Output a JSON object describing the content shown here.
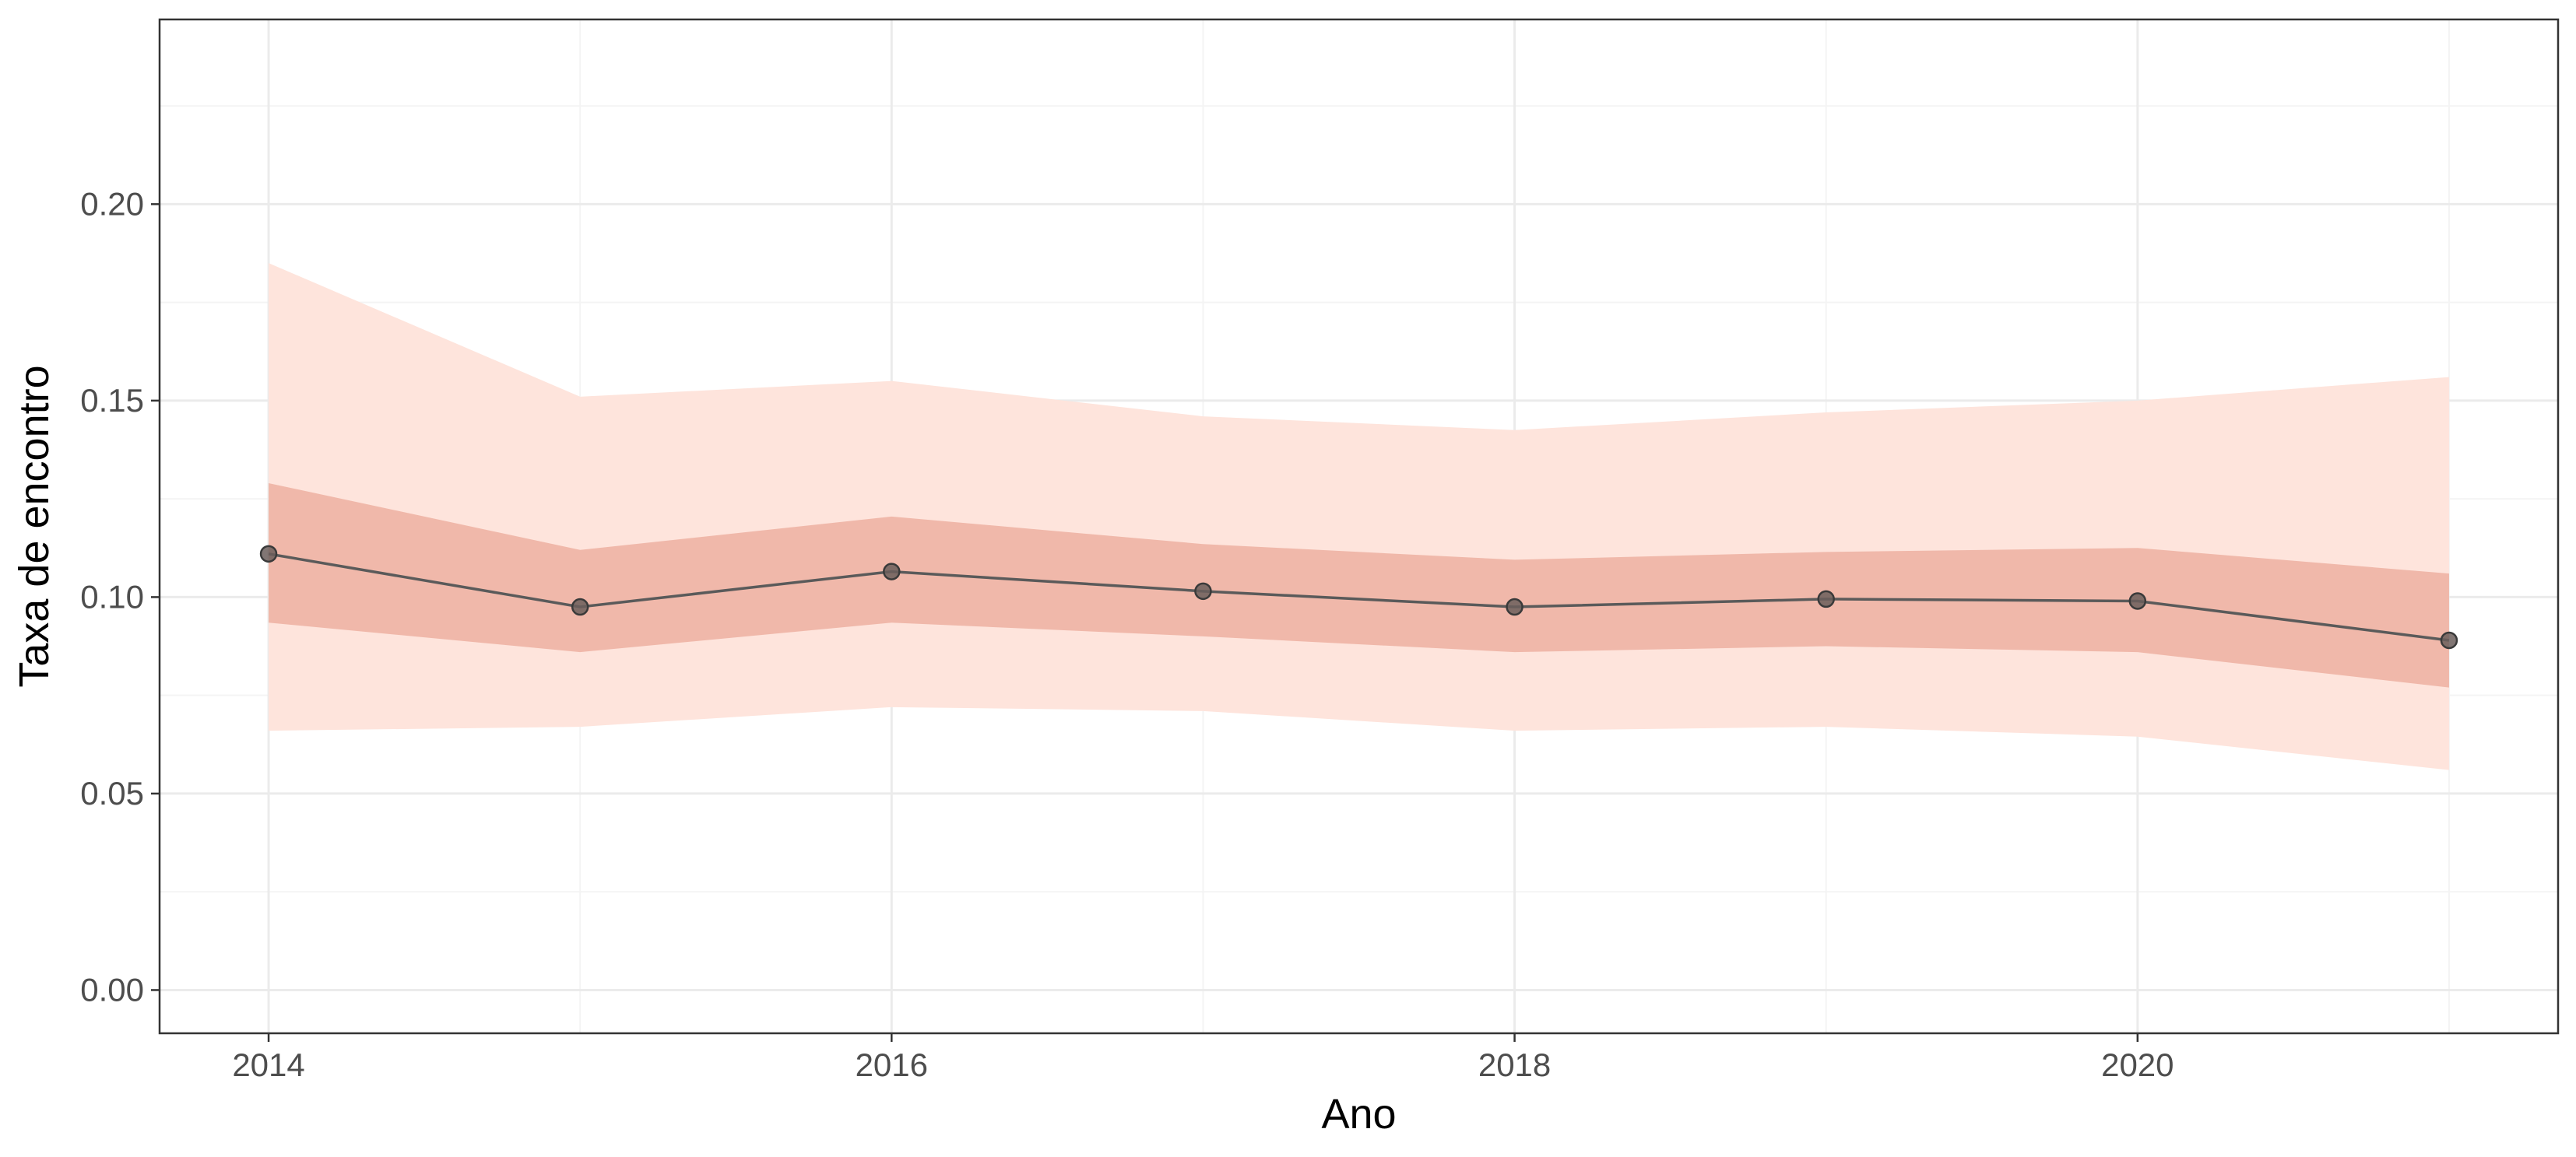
{
  "chart_data": {
    "type": "line",
    "xlabel": "Ano",
    "ylabel": "Taxa de encontro",
    "xlim": [
      2013.65,
      2021.35
    ],
    "ylim": [
      -0.011,
      0.247
    ],
    "x_ticks": [
      2014,
      2016,
      2018,
      2020
    ],
    "x_tick_labels": [
      "2014",
      "2016",
      "2018",
      "2020"
    ],
    "y_ticks": [
      0,
      0.05,
      0.1,
      0.15,
      0.2
    ],
    "y_tick_labels": [
      "0.00",
      "0.05",
      "0.10",
      "0.15",
      "0.20"
    ],
    "grid": true,
    "series": [
      {
        "x": [
          2014,
          2015,
          2016,
          2017,
          2018,
          2019,
          2020,
          2021
        ],
        "y": [
          0.111,
          0.0975,
          0.1065,
          0.1015,
          0.0975,
          0.0995,
          0.099,
          0.089
        ],
        "inner_lower": [
          0.0935,
          0.086,
          0.0935,
          0.09,
          0.086,
          0.0875,
          0.086,
          0.077
        ],
        "inner_upper": [
          0.129,
          0.112,
          0.1205,
          0.1135,
          0.1095,
          0.1115,
          0.1125,
          0.106
        ],
        "outer_lower": [
          0.066,
          0.067,
          0.072,
          0.071,
          0.066,
          0.067,
          0.0645,
          0.056
        ],
        "outer_upper": [
          0.185,
          0.151,
          0.155,
          0.146,
          0.1425,
          0.147,
          0.15,
          0.156
        ]
      }
    ],
    "colors": {
      "outer_band": "#fee4dc",
      "inner_band": "#f0b8aa",
      "line": "#5a5a5a",
      "point_fill": "#6b5e5c",
      "grid_major": "#ebebeb",
      "grid_minor": "#f4f4f4",
      "panel_border": "#333333"
    }
  }
}
